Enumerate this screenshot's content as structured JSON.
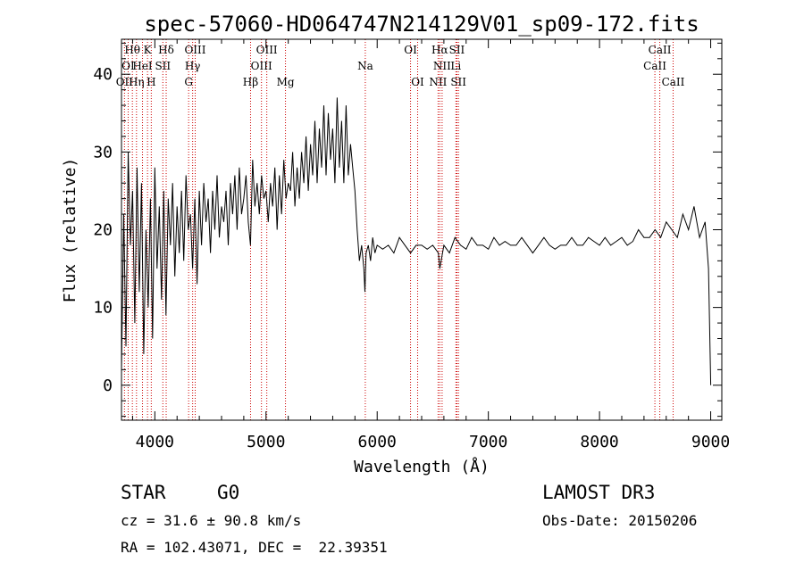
{
  "chart_data": {
    "type": "line",
    "title": "spec-57060-HD064747N214129V01_sp09-172.fits",
    "xlabel": "Wavelength (Å)",
    "ylabel": "Flux (relative)",
    "xlim": [
      3700,
      9100
    ],
    "ylim": [
      -4.5,
      44.5
    ],
    "xticks": [
      4000,
      5000,
      6000,
      7000,
      8000,
      9000
    ],
    "yticks": [
      0,
      10,
      20,
      30,
      40
    ],
    "grid": false,
    "series": [
      {
        "name": "flux",
        "x": [
          3700,
          3720,
          3740,
          3760,
          3780,
          3800,
          3820,
          3840,
          3860,
          3880,
          3900,
          3920,
          3940,
          3960,
          3980,
          4000,
          4020,
          4040,
          4060,
          4080,
          4100,
          4120,
          4140,
          4160,
          4180,
          4200,
          4220,
          4240,
          4260,
          4280,
          4300,
          4320,
          4340,
          4360,
          4380,
          4400,
          4420,
          4440,
          4460,
          4480,
          4500,
          4520,
          4540,
          4560,
          4580,
          4600,
          4620,
          4640,
          4660,
          4680,
          4700,
          4720,
          4740,
          4760,
          4780,
          4800,
          4820,
          4840,
          4860,
          4880,
          4900,
          4920,
          4940,
          4960,
          4980,
          5000,
          5020,
          5040,
          5060,
          5080,
          5100,
          5120,
          5140,
          5160,
          5180,
          5200,
          5220,
          5240,
          5260,
          5280,
          5300,
          5320,
          5340,
          5360,
          5380,
          5400,
          5420,
          5440,
          5460,
          5480,
          5500,
          5520,
          5540,
          5560,
          5580,
          5600,
          5620,
          5640,
          5660,
          5680,
          5700,
          5720,
          5740,
          5760,
          5780,
          5800,
          5820,
          5840,
          5860,
          5880,
          5890,
          5900,
          5920,
          5940,
          5960,
          5980,
          6000,
          6050,
          6100,
          6150,
          6200,
          6250,
          6300,
          6350,
          6400,
          6450,
          6500,
          6550,
          6563,
          6600,
          6650,
          6700,
          6750,
          6800,
          6850,
          6900,
          6950,
          7000,
          7050,
          7100,
          7150,
          7200,
          7250,
          7300,
          7350,
          7400,
          7450,
          7500,
          7550,
          7600,
          7650,
          7700,
          7750,
          7800,
          7850,
          7900,
          7950,
          8000,
          8050,
          8100,
          8150,
          8200,
          8250,
          8300,
          8350,
          8400,
          8450,
          8500,
          8550,
          8600,
          8650,
          8700,
          8750,
          8800,
          8850,
          8900,
          8950,
          8980,
          9000
        ],
        "y": [
          2,
          22,
          5,
          30,
          18,
          25,
          8,
          28,
          12,
          26,
          4,
          20,
          10,
          24,
          6,
          28,
          15,
          23,
          11,
          25,
          9,
          24,
          18,
          26,
          14,
          23,
          17,
          25,
          16,
          27,
          20,
          22,
          15,
          24,
          13,
          25,
          18,
          26,
          21,
          24,
          17,
          25,
          20,
          27,
          19,
          23,
          21,
          25,
          18,
          26,
          22,
          27,
          20,
          28,
          22,
          24,
          27,
          21,
          18,
          29,
          23,
          26,
          22,
          27,
          24,
          25,
          21,
          26,
          23,
          28,
          20,
          27,
          22,
          29,
          24,
          26,
          25,
          30,
          23,
          28,
          24,
          30,
          26,
          32,
          25,
          31,
          27,
          34,
          26,
          33,
          28,
          36,
          27,
          35,
          29,
          33,
          26,
          37,
          28,
          34,
          26,
          36,
          27,
          31,
          28,
          25,
          20,
          16,
          18,
          15,
          12,
          17,
          18,
          16,
          19,
          17,
          18,
          17.5,
          18,
          17,
          19,
          18,
          17,
          18,
          18,
          17.5,
          18,
          17,
          15,
          18,
          17,
          19,
          18,
          17.5,
          19,
          18,
          18,
          17.5,
          19,
          18,
          18.5,
          18,
          18,
          19,
          18,
          17,
          18,
          19,
          18,
          17.5,
          18,
          18,
          19,
          18,
          18,
          19,
          18.5,
          18,
          19,
          18,
          18.5,
          19,
          18,
          18.5,
          20,
          19,
          19,
          20,
          19,
          21,
          20,
          19,
          22,
          20,
          23,
          19,
          21,
          15,
          0
        ]
      }
    ],
    "lines": [
      {
        "label": "Hθ",
        "x": 3798
      },
      {
        "label": "K",
        "x": 3934
      },
      {
        "label": "Hδ",
        "x": 4102
      },
      {
        "label": "OIII",
        "x": 4363
      },
      {
        "label": "OIII",
        "x": 5007
      },
      {
        "label": "OI",
        "x": 6300
      },
      {
        "label": "Hα",
        "x": 6563
      },
      {
        "label": "SII",
        "x": 6717
      },
      {
        "label": "CaII",
        "x": 8542
      },
      {
        "label": "OI",
        "x": 3760
      },
      {
        "label": "HeI",
        "x": 3889
      },
      {
        "label": "SII",
        "x": 4072
      },
      {
        "label": "Hγ",
        "x": 4340
      },
      {
        "label": "OIII",
        "x": 4959
      },
      {
        "label": "Na",
        "x": 5893
      },
      {
        "label": "NII",
        "x": 6584
      },
      {
        "label": "Li",
        "x": 6708
      },
      {
        "label": "CaII",
        "x": 8498
      },
      {
        "label": "OII",
        "x": 3727
      },
      {
        "label": "Hη",
        "x": 3835
      },
      {
        "label": "H",
        "x": 3968
      },
      {
        "label": "G",
        "x": 4304
      },
      {
        "label": "Hβ",
        "x": 4861
      },
      {
        "label": "Mg",
        "x": 5175
      },
      {
        "label": "OI",
        "x": 6364
      },
      {
        "label": "NII",
        "x": 6548
      },
      {
        "label": "SII",
        "x": 6731
      },
      {
        "label": "CaII",
        "x": 8662
      }
    ]
  },
  "info": {
    "object_class": "STAR",
    "subclass": "G0",
    "survey": "LAMOST DR3",
    "cz": "cz = 31.6 ± 90.8 km/s",
    "obs_date": "Obs-Date: 20150206",
    "coords": "RA = 102.43071, DEC =  22.39351"
  }
}
